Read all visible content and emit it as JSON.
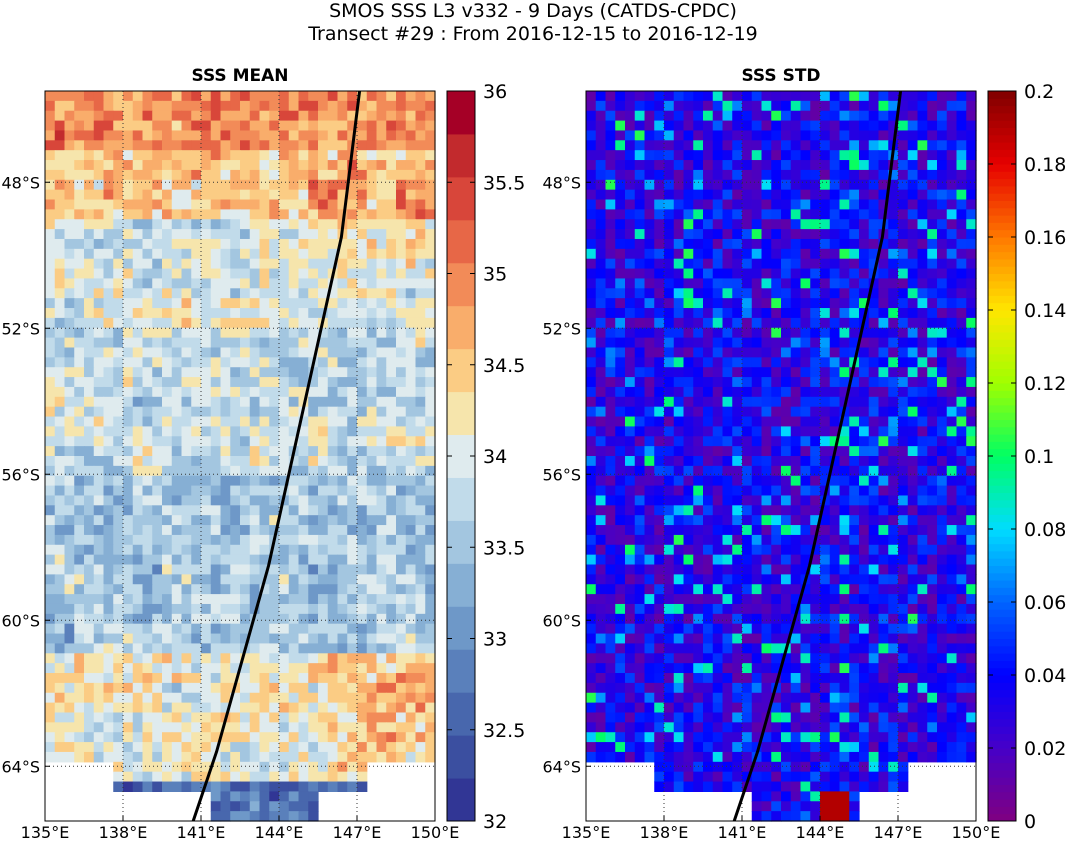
{
  "header": {
    "title_line1": "SMOS SSS L3 v332 - 9 Days (CATDS-CPDC)",
    "title_line2": "Transect #29 : From 2016-12-15 to 2016-12-19"
  },
  "map_extent": {
    "lon": [
      135,
      150
    ],
    "lat": [
      -65.5,
      -45.5
    ]
  },
  "lon_ticks": [
    135,
    138,
    141,
    144,
    147,
    150
  ],
  "lon_tick_labels": [
    "135°E",
    "138°E",
    "141°E",
    "144°E",
    "147°E",
    "150°E"
  ],
  "lat_ticks": [
    -48,
    -52,
    -56,
    -60,
    -64
  ],
  "lat_tick_labels": [
    "48°S",
    "52°S",
    "56°S",
    "60°S",
    "64°S"
  ],
  "transect": [
    [
      140.7,
      -65.5
    ],
    [
      141.6,
      -63.6
    ],
    [
      143.6,
      -58.5
    ],
    [
      145.0,
      -54.0
    ],
    [
      146.4,
      -49.5
    ],
    [
      147.1,
      -45.5
    ]
  ],
  "panels": [
    {
      "title": "SSS MEAN",
      "colorbar": {
        "min": 32,
        "max": 36,
        "ticks": [
          32,
          32.5,
          33,
          33.5,
          34,
          34.5,
          35,
          35.5,
          36
        ],
        "tick_labels": [
          "32",
          "32.5",
          "33",
          "33.5",
          "34",
          "34.5",
          "35",
          "35.5",
          "36"
        ],
        "colors": [
          "#313695",
          "#3b4fa0",
          "#4867ad",
          "#5a80bb",
          "#6e98c8",
          "#86afd4",
          "#a3c6e0",
          "#c1dbea",
          "#dfebee",
          "#f6e5ac",
          "#fbcc84",
          "#f9ad6b",
          "#f28b58",
          "#e76747",
          "#d8463a",
          "#c22a2d",
          "#a50026"
        ]
      }
    },
    {
      "title": "SSS STD",
      "colorbar": {
        "min": 0,
        "max": 0.2,
        "ticks": [
          0,
          0.02,
          0.04,
          0.06,
          0.08,
          0.1,
          0.12,
          0.14,
          0.16,
          0.18,
          0.2
        ],
        "tick_labels": [
          "0",
          "0.02",
          "0.04",
          "0.06",
          "0.08",
          "0.1",
          "0.12",
          "0.14",
          "0.16",
          "0.18",
          "0.2"
        ]
      }
    }
  ]
}
